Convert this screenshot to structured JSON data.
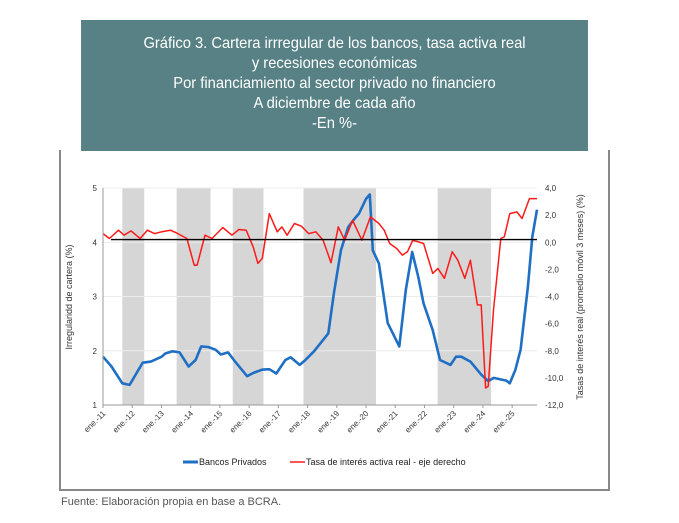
{
  "header": {
    "lines": [
      "Gráfico 3. Cartera irrregular de los bancos, tasa activa real",
      "y recesiones económicas",
      "Por financiamiento al sector privado no financiero",
      "A diciembre de cada año",
      "-En %-"
    ]
  },
  "footer": {
    "source": "Fuente: Elaboración propia en base a BCRA."
  },
  "chart_data": {
    "type": "line",
    "title": "",
    "xlabel": "",
    "ylabel": "Irregularidd de cartera (%)",
    "ylabel_right": "Tasas de interés real (promedio móvil 3 meses) (%)",
    "ylim": [
      1,
      5
    ],
    "ylim_right": [
      -12,
      4
    ],
    "yticks": [
      "1",
      "2",
      "3",
      "4",
      "5"
    ],
    "yticks_right": [
      "-12,0",
      "-10,0",
      "-8,0",
      "-6,0",
      "-4,0",
      "-2,0",
      "0,0",
      "2,0",
      "4,0"
    ],
    "xticks": [
      "ene.-11",
      "ene.-12",
      "ene.-13",
      "ene.-14",
      "ene.-15",
      "ene.-16",
      "ene.-17",
      "ene.-18",
      "ene.-19",
      "ene.-20",
      "ene.-21",
      "ene.-22",
      "ene.-23",
      "ene.-24",
      "ene.-25"
    ],
    "grid": true,
    "legend_placement": "bottom",
    "reference_line_left_axis": 4.05,
    "recessions": [
      [
        2011.66,
        2012.41
      ],
      [
        2013.52,
        2014.68
      ],
      [
        2015.44,
        2016.49
      ],
      [
        2017.86,
        2020.34
      ],
      [
        2022.45,
        2024.28
      ]
    ],
    "colors": {
      "blue": "#1f6fc5",
      "red": "#ff1a1a",
      "shade": "#d6d6d6",
      "reference": "#000000"
    },
    "series": [
      {
        "name": "Bancos Privados",
        "axis": "left",
        "x": [
          2011.0,
          2011.29,
          2011.66,
          2011.91,
          2012.15,
          2012.36,
          2012.64,
          2013.01,
          2013.13,
          2013.38,
          2013.62,
          2013.93,
          2014.17,
          2014.36,
          2014.6,
          2014.85,
          2015.03,
          2015.28,
          2015.52,
          2015.93,
          2016.14,
          2016.44,
          2016.69,
          2016.93,
          2017.24,
          2017.42,
          2017.73,
          2017.91,
          2018.22,
          2018.53,
          2018.71,
          2018.9,
          2019.14,
          2019.39,
          2019.57,
          2019.76,
          2020.0,
          2020.13,
          2020.23,
          2020.44,
          2020.74,
          2021.14,
          2021.36,
          2021.58,
          2021.79,
          2021.97,
          2022.28,
          2022.53,
          2022.89,
          2023.08,
          2023.26,
          2023.57,
          2023.94,
          2024.18,
          2024.37,
          2024.8,
          2024.92,
          2025.11,
          2025.29,
          2025.54,
          2025.69,
          2025.85
        ],
        "values": [
          1.89,
          1.71,
          1.4,
          1.37,
          1.59,
          1.78,
          1.8,
          1.89,
          1.95,
          1.99,
          1.97,
          1.71,
          1.83,
          2.08,
          2.07,
          2.02,
          1.93,
          1.97,
          1.8,
          1.53,
          1.59,
          1.65,
          1.66,
          1.58,
          1.83,
          1.88,
          1.74,
          1.82,
          1.99,
          2.2,
          2.32,
          3.06,
          3.85,
          4.28,
          4.41,
          4.53,
          4.8,
          4.88,
          3.85,
          3.61,
          2.51,
          2.08,
          3.12,
          3.82,
          3.36,
          2.87,
          2.38,
          1.83,
          1.74,
          1.89,
          1.89,
          1.8,
          1.56,
          1.44,
          1.5,
          1.45,
          1.4,
          1.65,
          2.02,
          3.18,
          4.1,
          4.6
        ]
      },
      {
        "name": "Tasa de interés activa real - eje derecho",
        "axis": "right",
        "x": [
          2011.0,
          2011.22,
          2011.53,
          2011.72,
          2011.96,
          2012.27,
          2012.52,
          2012.76,
          2013.01,
          2013.31,
          2013.56,
          2013.87,
          2014.12,
          2014.22,
          2014.49,
          2014.73,
          2015.1,
          2015.41,
          2015.65,
          2015.9,
          2016.14,
          2016.3,
          2016.45,
          2016.69,
          2016.96,
          2017.12,
          2017.3,
          2017.55,
          2017.79,
          2018.04,
          2018.28,
          2018.53,
          2018.8,
          2019.05,
          2019.27,
          2019.54,
          2019.86,
          2020.15,
          2020.44,
          2020.62,
          2020.81,
          2021.05,
          2021.24,
          2021.42,
          2021.6,
          2021.97,
          2022.28,
          2022.46,
          2022.68,
          2022.95,
          2023.14,
          2023.38,
          2023.57,
          2023.81,
          2023.94,
          2024.09,
          2024.18,
          2024.36,
          2024.61,
          2024.73,
          2024.92,
          2025.16,
          2025.34,
          2025.59,
          2025.85
        ],
        "values": [
          0.64,
          0.28,
          0.89,
          0.52,
          0.84,
          0.28,
          0.89,
          0.64,
          0.77,
          0.89,
          0.64,
          0.28,
          -1.69,
          -1.69,
          0.52,
          0.28,
          1.09,
          0.52,
          0.94,
          0.89,
          -0.34,
          -1.56,
          -1.19,
          2.11,
          0.77,
          1.13,
          0.52,
          1.38,
          1.18,
          0.64,
          0.77,
          0.15,
          -1.51,
          1.13,
          0.15,
          1.62,
          0.15,
          1.87,
          1.38,
          0.89,
          -0.09,
          -0.46,
          -0.95,
          -0.7,
          0.15,
          -0.09,
          -2.3,
          -1.93,
          -2.66,
          -0.7,
          -1.32,
          -2.66,
          -1.32,
          -4.62,
          -4.62,
          -10.75,
          -10.63,
          -4.99,
          0.28,
          0.4,
          2.11,
          2.24,
          1.75,
          3.22,
          3.22
        ]
      }
    ]
  }
}
